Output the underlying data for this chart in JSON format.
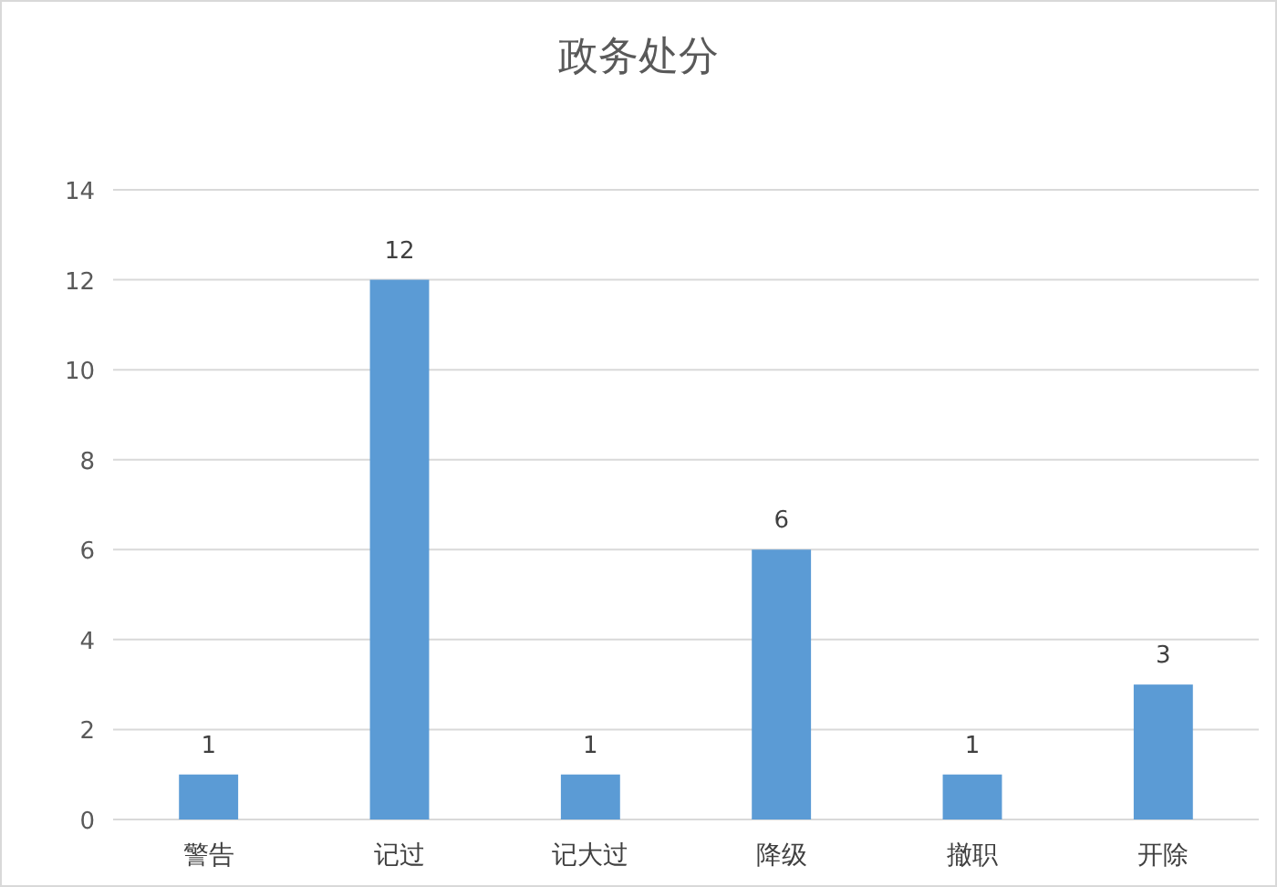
{
  "chart_data": {
    "type": "bar",
    "title": "政务处分",
    "categories": [
      "警告",
      "记过",
      "记大过",
      "降级",
      "撤职",
      "开除"
    ],
    "values": [
      1,
      12,
      1,
      6,
      1,
      3
    ],
    "color": "#5b9bd5",
    "ylim": [
      0,
      14
    ],
    "yticks": [
      0,
      2,
      4,
      6,
      8,
      10,
      12,
      14
    ],
    "grid": "y",
    "data_labels": true
  }
}
